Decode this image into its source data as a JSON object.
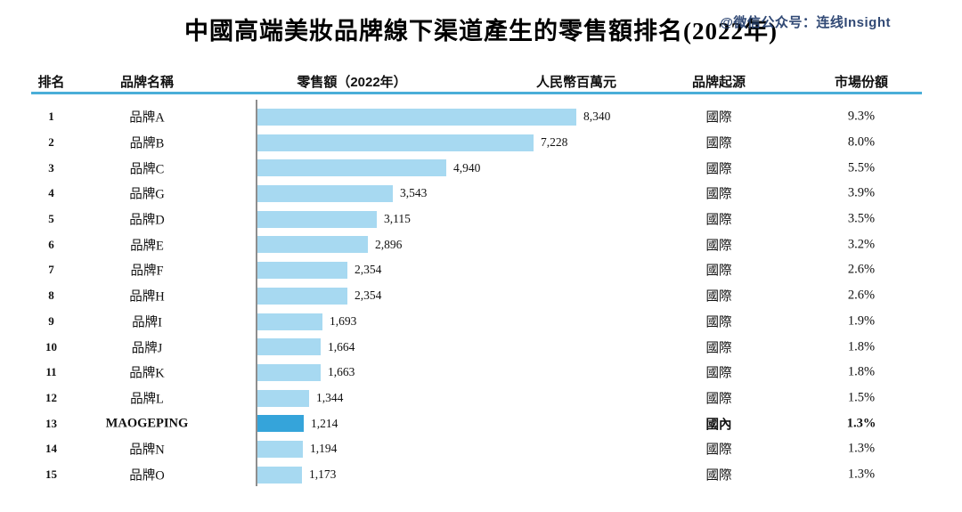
{
  "title": "中國高端美妝品牌線下渠道產生的零售額排名(2022年)",
  "watermark": "@微信公众号：连线Insight",
  "headers": {
    "rank": "排名",
    "brand": "品牌名稱",
    "retail": "零售額（2022年）",
    "unit": "人民幣百萬元",
    "origin": "品牌起源",
    "share": "市場份額"
  },
  "colors": {
    "bar": "#a7d9f1",
    "bar_highlight": "#35a4da",
    "header_line": "#4aaed8",
    "axis": "#8e8e8e",
    "watermark": "#26406e"
  },
  "chart_data": {
    "type": "bar",
    "orientation": "horizontal",
    "title": "中國高端美妝品牌線下渠道產生的零售額排名(2022年)",
    "value_unit": "人民幣百萬元",
    "xlim": [
      0,
      8340
    ],
    "legend": "none",
    "grid": false,
    "categories": [
      "品牌A",
      "品牌B",
      "品牌C",
      "品牌G",
      "品牌D",
      "品牌E",
      "品牌F",
      "品牌H",
      "品牌I",
      "品牌J",
      "品牌K",
      "品牌L",
      "MAOGEPING",
      "品牌N",
      "品牌O"
    ],
    "values": [
      8340,
      7228,
      4940,
      3543,
      3115,
      2896,
      2354,
      2354,
      1693,
      1664,
      1663,
      1344,
      1214,
      1194,
      1173
    ],
    "rows": [
      {
        "rank": "1",
        "brand": "品牌A",
        "value": 8340,
        "value_label": "8,340",
        "origin": "國際",
        "share": "9.3%",
        "highlight": false
      },
      {
        "rank": "2",
        "brand": "品牌B",
        "value": 7228,
        "value_label": "7,228",
        "origin": "國際",
        "share": "8.0%",
        "highlight": false
      },
      {
        "rank": "3",
        "brand": "品牌C",
        "value": 4940,
        "value_label": "4,940",
        "origin": "國際",
        "share": "5.5%",
        "highlight": false
      },
      {
        "rank": "4",
        "brand": "品牌G",
        "value": 3543,
        "value_label": "3,543",
        "origin": "國際",
        "share": "3.9%",
        "highlight": false
      },
      {
        "rank": "5",
        "brand": "品牌D",
        "value": 3115,
        "value_label": "3,115",
        "origin": "國際",
        "share": "3.5%",
        "highlight": false
      },
      {
        "rank": "6",
        "brand": "品牌E",
        "value": 2896,
        "value_label": "2,896",
        "origin": "國際",
        "share": "3.2%",
        "highlight": false
      },
      {
        "rank": "7",
        "brand": "品牌F",
        "value": 2354,
        "value_label": "2,354",
        "origin": "國際",
        "share": "2.6%",
        "highlight": false
      },
      {
        "rank": "8",
        "brand": "品牌H",
        "value": 2354,
        "value_label": "2,354",
        "origin": "國際",
        "share": "2.6%",
        "highlight": false
      },
      {
        "rank": "9",
        "brand": "品牌I",
        "value": 1693,
        "value_label": "1,693",
        "origin": "國際",
        "share": "1.9%",
        "highlight": false
      },
      {
        "rank": "10",
        "brand": "品牌J",
        "value": 1664,
        "value_label": "1,664",
        "origin": "國際",
        "share": "1.8%",
        "highlight": false
      },
      {
        "rank": "11",
        "brand": "品牌K",
        "value": 1663,
        "value_label": "1,663",
        "origin": "國際",
        "share": "1.8%",
        "highlight": false
      },
      {
        "rank": "12",
        "brand": "品牌L",
        "value": 1344,
        "value_label": "1,344",
        "origin": "國際",
        "share": "1.5%",
        "highlight": false
      },
      {
        "rank": "13",
        "brand": "MAOGEPING",
        "value": 1214,
        "value_label": "1,214",
        "origin": "國內",
        "share": "1.3%",
        "highlight": true
      },
      {
        "rank": "14",
        "brand": "品牌N",
        "value": 1194,
        "value_label": "1,194",
        "origin": "國際",
        "share": "1.3%",
        "highlight": false
      },
      {
        "rank": "15",
        "brand": "品牌O",
        "value": 1173,
        "value_label": "1,173",
        "origin": "國際",
        "share": "1.3%",
        "highlight": false
      }
    ]
  }
}
